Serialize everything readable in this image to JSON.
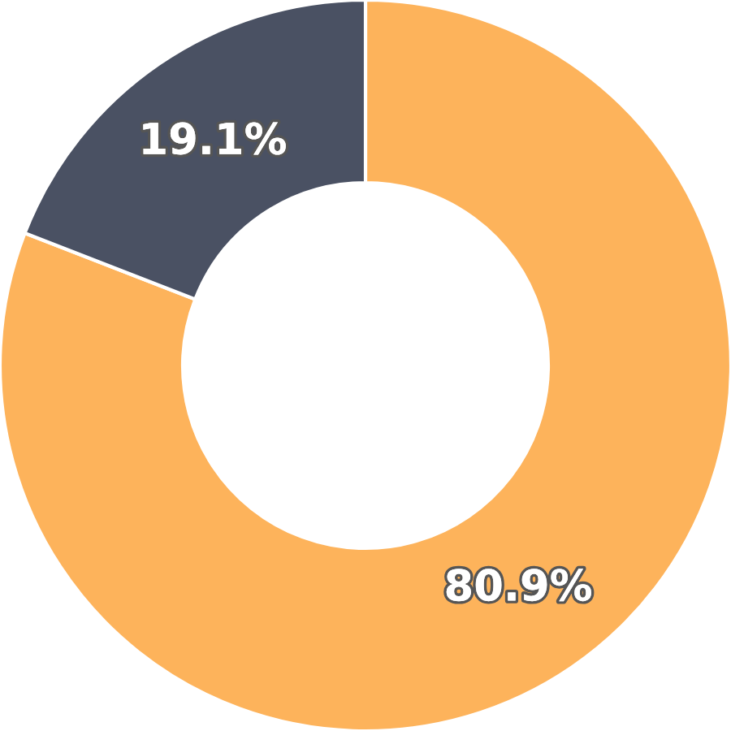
{
  "chart_data": {
    "type": "donut",
    "categories": [
      null,
      null
    ],
    "values": [
      80.9,
      19.1
    ],
    "colors": [
      "#fdb35b",
      "#4a5163"
    ],
    "value_labels": [
      "80.9%",
      "19.1%"
    ]
  }
}
